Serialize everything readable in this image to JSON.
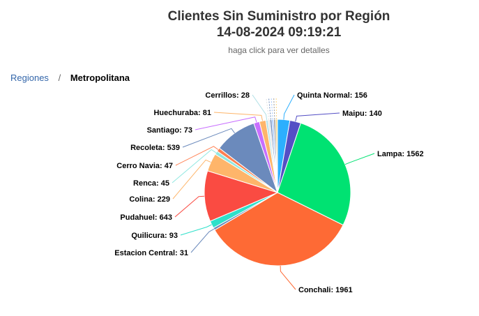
{
  "chart": {
    "title_line1": "Clientes Sin Suministro por Región",
    "title_line2": "14-08-2024 09:19:21",
    "subtitle": "haga click para ver detalles"
  },
  "breadcrumb": {
    "root": "Regiones",
    "separator": "/",
    "current": "Metropolitana"
  },
  "chart_data": {
    "type": "pie",
    "title": "Clientes Sin Suministro por Región",
    "subtitle": "haga click para ver detalles",
    "categories": [
      "Quinta Normal",
      "Maipu",
      "Lampa",
      "Conchali",
      "Estacion Central",
      "Quilicura",
      "Pudahuel",
      "Colina",
      "Renca",
      "Cerro Navia",
      "Recoleta",
      "Santiago",
      "Huechuraba",
      "Cerrillos"
    ],
    "values": [
      156,
      140,
      1562,
      1961,
      31,
      93,
      643,
      229,
      45,
      47,
      539,
      73,
      81,
      28
    ],
    "colors": [
      "#2caffe",
      "#544fc5",
      "#00e272",
      "#fe6a35",
      "#6b8abc",
      "#2ee0ca",
      "#fa4b42",
      "#feb56a",
      "#91e8e1",
      "#ff7f50",
      "#6b8abc",
      "#c86eff",
      "#feb56a",
      "#b0e0e6"
    ],
    "unlabeled_small_slices": 5,
    "legend": "none"
  }
}
